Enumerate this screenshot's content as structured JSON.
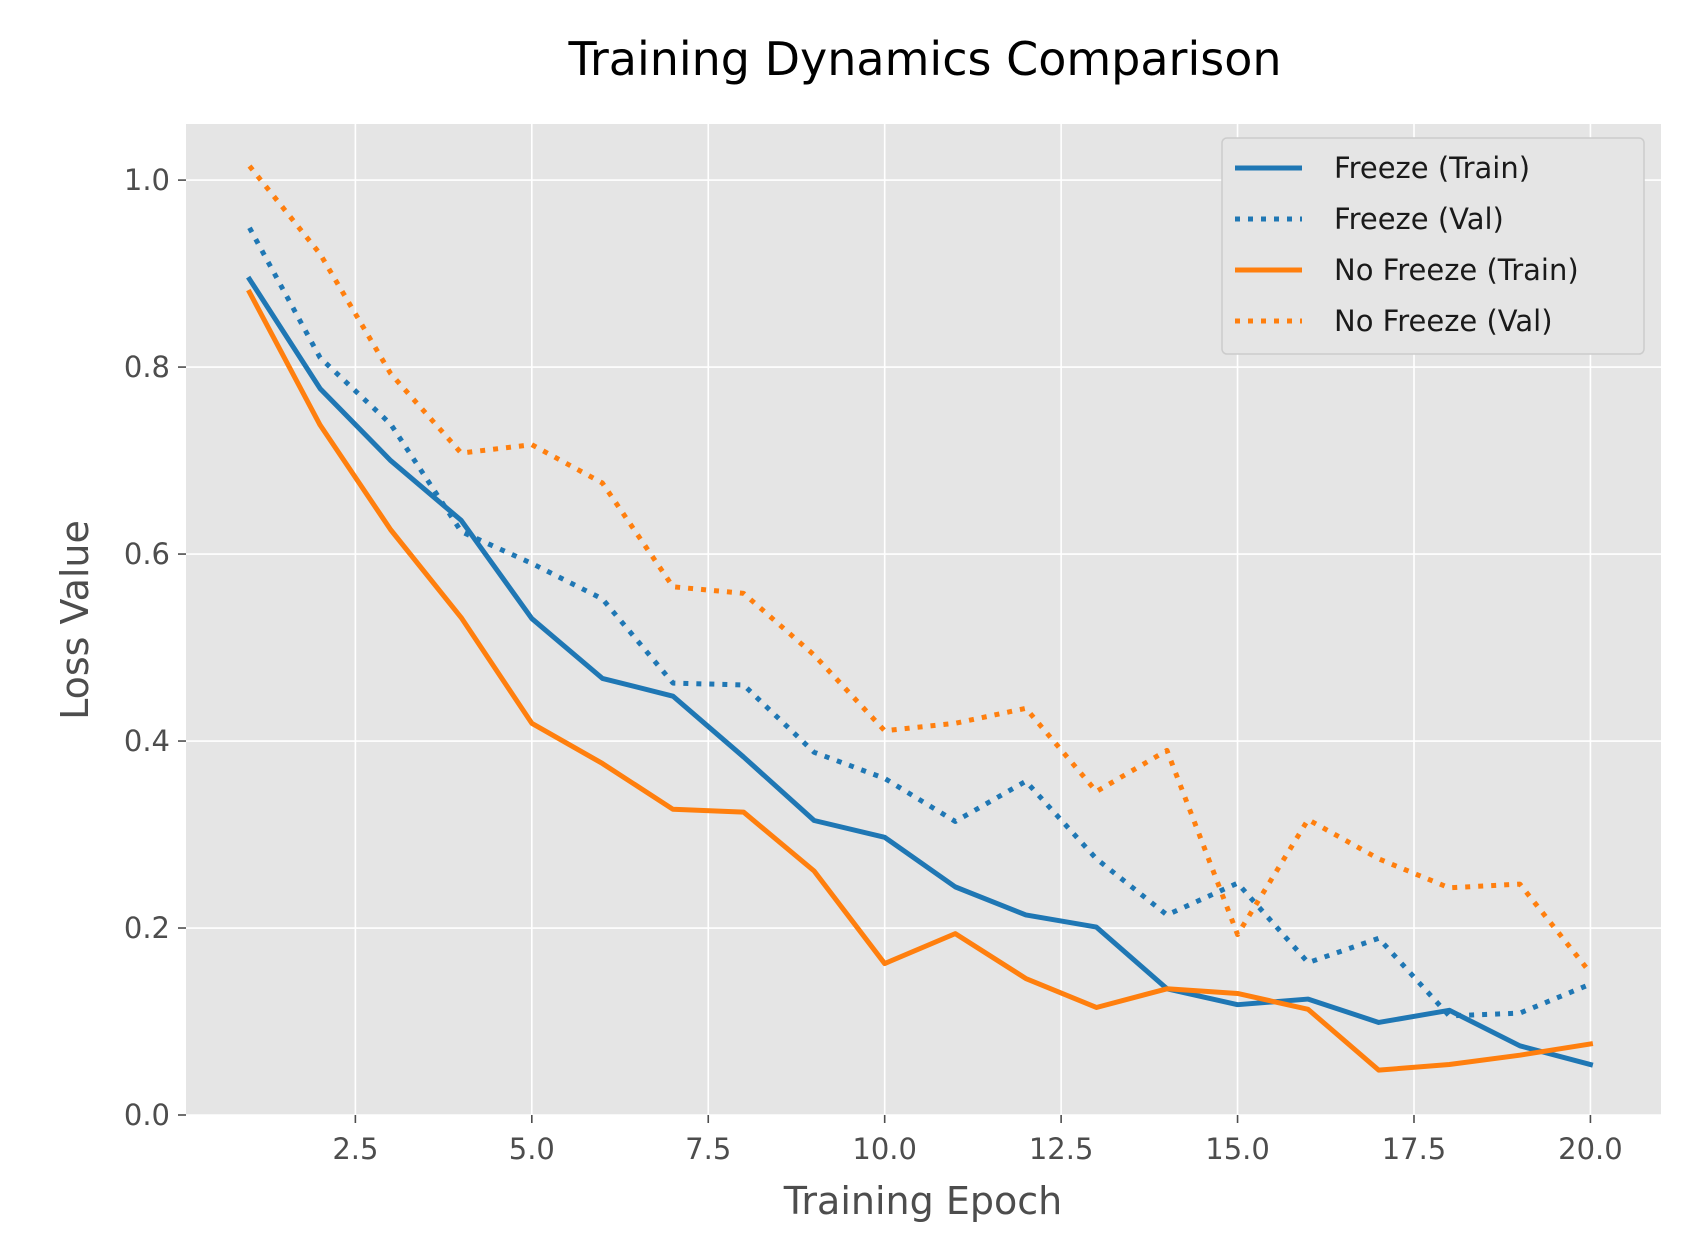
{
  "chart_data": {
    "type": "line",
    "title": "Training Dynamics Comparison",
    "xlabel": "Training Epoch",
    "ylabel": "Loss Value",
    "xlim": [
      0.1,
      21.0
    ],
    "ylim": [
      0.0,
      1.06
    ],
    "xticks": [
      2.5,
      5.0,
      7.5,
      10.0,
      12.5,
      15.0,
      17.5,
      20.0
    ],
    "xtick_labels": [
      "2.5",
      "5.0",
      "7.5",
      "10.0",
      "12.5",
      "15.0",
      "17.5",
      "20.0"
    ],
    "yticks": [
      0.0,
      0.2,
      0.4,
      0.6,
      0.8,
      1.0
    ],
    "ytick_labels": [
      "0.0",
      "0.2",
      "0.4",
      "0.6",
      "0.8",
      "1.0"
    ],
    "grid": true,
    "legend_position": "top-right",
    "x": [
      1,
      2,
      3,
      4,
      5,
      6,
      7,
      8,
      9,
      10,
      11,
      12,
      13,
      14,
      15,
      16,
      17,
      18,
      19,
      20
    ],
    "series": [
      {
        "name": "Freeze (Train)",
        "color": "#1f77b4",
        "style": "solid",
        "values": [
          0.894,
          0.777,
          0.7,
          0.636,
          0.531,
          0.467,
          0.448,
          0.383,
          0.315,
          0.297,
          0.244,
          0.214,
          0.201,
          0.135,
          0.118,
          0.124,
          0.099,
          0.112,
          0.074,
          0.054
        ]
      },
      {
        "name": "Freeze (Val)",
        "color": "#1f77b4",
        "style": "dotted",
        "values": [
          0.949,
          0.81,
          0.739,
          0.624,
          0.59,
          0.552,
          0.462,
          0.46,
          0.388,
          0.36,
          0.314,
          0.357,
          0.274,
          0.214,
          0.248,
          0.163,
          0.189,
          0.106,
          0.109,
          0.14
        ]
      },
      {
        "name": "No Freeze (Train)",
        "color": "#ff7f0e",
        "style": "solid",
        "values": [
          0.88,
          0.738,
          0.626,
          0.532,
          0.419,
          0.376,
          0.327,
          0.324,
          0.261,
          0.162,
          0.194,
          0.146,
          0.115,
          0.135,
          0.13,
          0.113,
          0.048,
          0.054,
          0.064,
          0.076
        ]
      },
      {
        "name": "No Freeze (Val)",
        "color": "#ff7f0e",
        "style": "dotted",
        "values": [
          1.015,
          0.921,
          0.793,
          0.708,
          0.717,
          0.676,
          0.565,
          0.558,
          0.492,
          0.411,
          0.419,
          0.435,
          0.346,
          0.39,
          0.193,
          0.316,
          0.274,
          0.243,
          0.247,
          0.152
        ]
      }
    ]
  },
  "colors": {
    "plot_background": "#e5e5e5",
    "grid": "#ffffff",
    "legend_background": "#e5e5e5",
    "legend_border": "#cccccc"
  }
}
